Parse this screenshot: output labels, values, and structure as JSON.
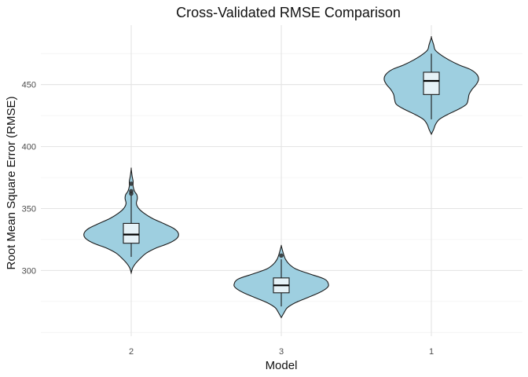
{
  "chart_data": {
    "type": "violin",
    "title": "Cross-Validated RMSE Comparison",
    "xlabel": "Model",
    "ylabel": "Root Mean Square Error (RMSE)",
    "categories": [
      "2",
      "3",
      "1"
    ],
    "y_ticks": [
      300,
      350,
      400,
      450
    ],
    "ylim": [
      247,
      498
    ],
    "grid": true,
    "fill_color": "#9ecfe0",
    "box_fill_color": "#e6f2f7",
    "line_color": "#1a1a1a",
    "series": [
      {
        "category": "2",
        "min": 298,
        "max": 382,
        "whisker_low": 311,
        "q1": 322,
        "median": 329,
        "q3": 338,
        "whisker_high": 361,
        "outliers": [
          362,
          364,
          370
        ],
        "density": [
          [
            298,
            0.0
          ],
          [
            302,
            0.03
          ],
          [
            306,
            0.1
          ],
          [
            310,
            0.2
          ],
          [
            314,
            0.32
          ],
          [
            318,
            0.52
          ],
          [
            322,
            0.8
          ],
          [
            326,
            0.97
          ],
          [
            330,
            1.0
          ],
          [
            334,
            0.9
          ],
          [
            338,
            0.68
          ],
          [
            342,
            0.45
          ],
          [
            346,
            0.28
          ],
          [
            350,
            0.16
          ],
          [
            354,
            0.11
          ],
          [
            358,
            0.13
          ],
          [
            361,
            0.12
          ],
          [
            364,
            0.07
          ],
          [
            368,
            0.04
          ],
          [
            372,
            0.04
          ],
          [
            376,
            0.02
          ],
          [
            382,
            0.0
          ]
        ]
      },
      {
        "category": "3",
        "min": 262,
        "max": 320,
        "whisker_low": 271,
        "q1": 282,
        "median": 288,
        "q3": 294,
        "whisker_high": 309,
        "outliers": [
          312
        ],
        "density": [
          [
            262,
            0.0
          ],
          [
            266,
            0.06
          ],
          [
            270,
            0.13
          ],
          [
            274,
            0.3
          ],
          [
            278,
            0.55
          ],
          [
            282,
            0.8
          ],
          [
            286,
            0.97
          ],
          [
            289,
            1.0
          ],
          [
            293,
            0.92
          ],
          [
            297,
            0.62
          ],
          [
            301,
            0.32
          ],
          [
            305,
            0.17
          ],
          [
            309,
            0.09
          ],
          [
            313,
            0.05
          ],
          [
            317,
            0.02
          ],
          [
            320,
            0.0
          ]
        ]
      },
      {
        "category": "1",
        "min": 410,
        "max": 488,
        "whisker_low": 422,
        "q1": 442,
        "median": 453,
        "q3": 460,
        "whisker_high": 475,
        "outliers": [],
        "density": [
          [
            410,
            0.0
          ],
          [
            414,
            0.05
          ],
          [
            418,
            0.09
          ],
          [
            422,
            0.17
          ],
          [
            426,
            0.35
          ],
          [
            430,
            0.57
          ],
          [
            434,
            0.74
          ],
          [
            438,
            0.78
          ],
          [
            442,
            0.8
          ],
          [
            446,
            0.86
          ],
          [
            450,
            0.95
          ],
          [
            454,
            1.0
          ],
          [
            458,
            0.97
          ],
          [
            462,
            0.84
          ],
          [
            466,
            0.58
          ],
          [
            470,
            0.37
          ],
          [
            474,
            0.2
          ],
          [
            478,
            0.08
          ],
          [
            482,
            0.05
          ],
          [
            488,
            0.0
          ]
        ]
      }
    ]
  }
}
